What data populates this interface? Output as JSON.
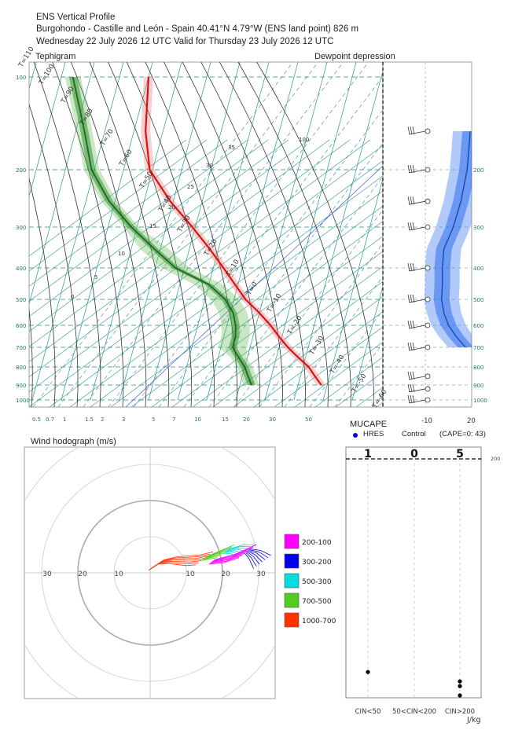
{
  "header": {
    "title": "ENS Vertical Profile",
    "location": "Burgohondo - Castille and León - Spain 40.41°N 4.79°W (ENS land point) 826 m",
    "validity": "Wednesday 22 July 2026 12 UTC Valid for Thursday 23 July 2026 12 UTC"
  },
  "colors": {
    "temperature": "#dd1111",
    "dewpoint": "#1a6a1a",
    "dewpoint_depression": "#2266ee",
    "isotherm": "#2a9a8a",
    "hodo_200_100": "#ff00ff",
    "hodo_300_200": "#0000ee",
    "hodo_500_300": "#00dddd",
    "hodo_700_500": "#55cc22",
    "hodo_1000_700": "#ff3300"
  },
  "chart_data": [
    {
      "type": "line",
      "title": "Tephigram",
      "y_axis_label": "",
      "pressure_ticks": [
        100,
        200,
        300,
        400,
        500,
        600,
        700,
        800,
        900,
        1000
      ],
      "mixing_ratio_ticks": [
        "0.5",
        "0.7",
        "1",
        "1.5",
        "2",
        "3",
        "5",
        "7",
        "10",
        "15",
        "20",
        "30",
        "50"
      ],
      "isotherm_labels": [
        "T=110",
        "T=100",
        "T=90",
        "T=80",
        "T=70",
        "T=60",
        "T=50",
        "T=40",
        "T=30",
        "T=20",
        "T=10",
        "T=0",
        "T=-10",
        "T=-20",
        "T=-30",
        "T=-40",
        "T=-50",
        "T=-60"
      ],
      "theta_labels": [
        "120",
        "110",
        "100",
        "90",
        "80",
        "70",
        "60",
        "50",
        "40",
        "35",
        "30",
        "25",
        "20",
        "15",
        "10",
        "5",
        "0"
      ],
      "series": [
        {
          "name": "",
          "kind": "temperature",
          "pressure_hpa": [
            900,
            850,
            800,
            750,
            700,
            650,
            600,
            550,
            500,
            450,
            400,
            350,
            300,
            250,
            200,
            150,
            100
          ],
          "temp_c": [
            28,
            25,
            22,
            17.5,
            13,
            9,
            5,
            0,
            -6,
            -11,
            -16.5,
            -23,
            -31,
            -41,
            -51,
            -56,
            -60
          ]
        },
        {
          "name": "",
          "kind": "dewpoint",
          "pressure_hpa": [
            900,
            850,
            800,
            750,
            700,
            650,
            600,
            550,
            500,
            450,
            400,
            350,
            300,
            250,
            200,
            150,
            100
          ],
          "dewpoint_c": [
            4,
            2,
            0,
            -3,
            -6,
            -6,
            -7,
            -9,
            -13,
            -20,
            -33,
            -42,
            -52,
            -62,
            -71,
            -77,
            -86
          ]
        }
      ]
    },
    {
      "type": "line",
      "title": "Dewpoint depression",
      "x_ticks": [
        "-10",
        "20"
      ],
      "right_pressure_ticks": [
        200,
        300,
        400,
        500,
        600,
        700,
        800,
        900,
        1000
      ],
      "series": [
        {
          "name": "",
          "pressure_hpa": [
            150,
            200,
            250,
            300,
            350,
            400,
            450,
            500,
            550,
            600,
            650,
            700
          ],
          "depression_c": [
            19,
            17,
            13,
            8,
            2,
            1,
            1,
            0.5,
            2,
            5,
            10,
            16
          ]
        }
      ],
      "wind_barbs_hpa": [
        150,
        200,
        250,
        300,
        400,
        500,
        600,
        700,
        850,
        925,
        1000
      ]
    },
    {
      "type": "scatter",
      "title": "Wind hodograph (m/s)",
      "ring_labels": [
        "30",
        "20",
        "10",
        "10",
        "20",
        "30"
      ],
      "legend": [
        "200-100",
        "300-200",
        "500-300",
        "700-500",
        "1000-700"
      ],
      "layers": [
        {
          "name": "1000-700",
          "u": [
            0,
            3,
            6,
            9,
            12,
            15
          ],
          "v": [
            1,
            3,
            3.5,
            3.5,
            3.5,
            4
          ]
        },
        {
          "name": "700-500",
          "u": [
            15,
            18,
            21
          ],
          "v": [
            4,
            5,
            6
          ]
        },
        {
          "name": "500-300",
          "u": [
            21,
            24,
            27
          ],
          "v": [
            6,
            6.5,
            6
          ]
        },
        {
          "name": "300-200",
          "u": [
            27,
            29,
            31
          ],
          "v": [
            6,
            5,
            3
          ]
        },
        {
          "name": "200-100",
          "u": [
            17,
            22,
            27
          ],
          "v": [
            3,
            4,
            6
          ]
        }
      ]
    },
    {
      "type": "scatter",
      "title": "MUCAPE",
      "categories": [
        "CIN<50",
        "50<CIN<200",
        "CIN>200"
      ],
      "counts": [
        "1",
        "0",
        "5"
      ],
      "x_unit": "J/kg",
      "top_pressure_label": "200",
      "legend": [
        "HRES",
        "Control",
        "(CAPE=0: 43)"
      ],
      "members": [
        {
          "category": "CIN<50",
          "relative_height": 0.11
        },
        {
          "category": "CIN>200",
          "relative_height": 0.07
        },
        {
          "category": "CIN>200",
          "relative_height": 0.05
        },
        {
          "category": "CIN>200",
          "relative_height": 0.01
        }
      ]
    }
  ],
  "labels": {
    "tephigram": "Tephigram",
    "dewpoint_depression": "Dewpoint depression",
    "mucape": "MUCAPE",
    "hres": "HRES",
    "control": "Control",
    "cape_zero": "(CAPE=0: 43)",
    "hodograph": "Wind hodograph (m/s)",
    "jkg": "J/kg"
  }
}
